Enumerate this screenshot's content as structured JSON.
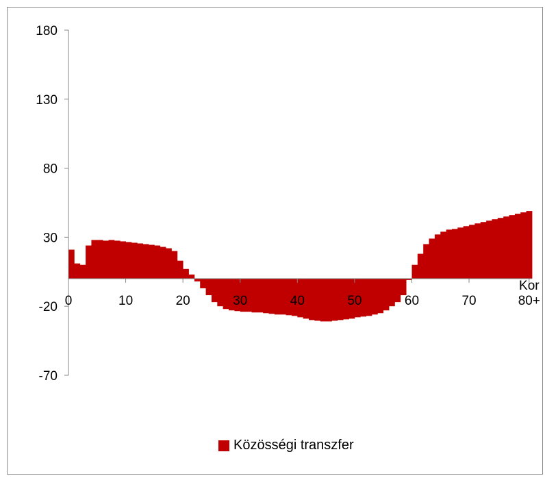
{
  "chart_data": {
    "type": "bar",
    "x_tick_labels": [
      "0",
      "10",
      "20",
      "30",
      "40",
      "50",
      "60",
      "70",
      "80+"
    ],
    "y_tick_labels": [
      "180",
      "130",
      "80",
      "30",
      "-20",
      "-70"
    ],
    "y_ticks": [
      180,
      130,
      80,
      30,
      -20,
      -70
    ],
    "ylim": [
      -70,
      180
    ],
    "xlim": [
      0,
      81
    ],
    "xlabel": "Kor",
    "ylabel": "",
    "title": "",
    "grid": false,
    "legend_position": "bottom",
    "series": [
      {
        "name": "Közösségi transzfer",
        "color": "#c00000",
        "x": [
          0,
          1,
          2,
          3,
          4,
          5,
          6,
          7,
          8,
          9,
          10,
          11,
          12,
          13,
          14,
          15,
          16,
          17,
          18,
          19,
          20,
          21,
          22,
          23,
          24,
          25,
          26,
          27,
          28,
          29,
          30,
          31,
          32,
          33,
          34,
          35,
          36,
          37,
          38,
          39,
          40,
          41,
          42,
          43,
          44,
          45,
          46,
          47,
          48,
          49,
          50,
          51,
          52,
          53,
          54,
          55,
          56,
          57,
          58,
          59,
          60,
          61,
          62,
          63,
          64,
          65,
          66,
          67,
          68,
          69,
          70,
          71,
          72,
          73,
          74,
          75,
          76,
          77,
          78,
          79,
          80
        ],
        "values": [
          21,
          11,
          10,
          24,
          28,
          28,
          27.5,
          28,
          27.5,
          27,
          26.5,
          26,
          25.5,
          25,
          24.5,
          24,
          23,
          22,
          20,
          13,
          7,
          3,
          -2,
          -7,
          -12,
          -17,
          -20,
          -22,
          -23,
          -23.5,
          -24,
          -24,
          -24.5,
          -24.5,
          -25,
          -25.5,
          -26,
          -26,
          -26.5,
          -27,
          -28,
          -29,
          -30,
          -30.5,
          -31,
          -31,
          -30.5,
          -30,
          -29.5,
          -29,
          -28,
          -27.5,
          -27,
          -26,
          -25,
          -23,
          -20,
          -17,
          -12,
          -1,
          10,
          18,
          25,
          29,
          32,
          34,
          35.5,
          36,
          37,
          38,
          39,
          40,
          41,
          42,
          43,
          44,
          45,
          46,
          47,
          48,
          49
        ]
      }
    ]
  }
}
